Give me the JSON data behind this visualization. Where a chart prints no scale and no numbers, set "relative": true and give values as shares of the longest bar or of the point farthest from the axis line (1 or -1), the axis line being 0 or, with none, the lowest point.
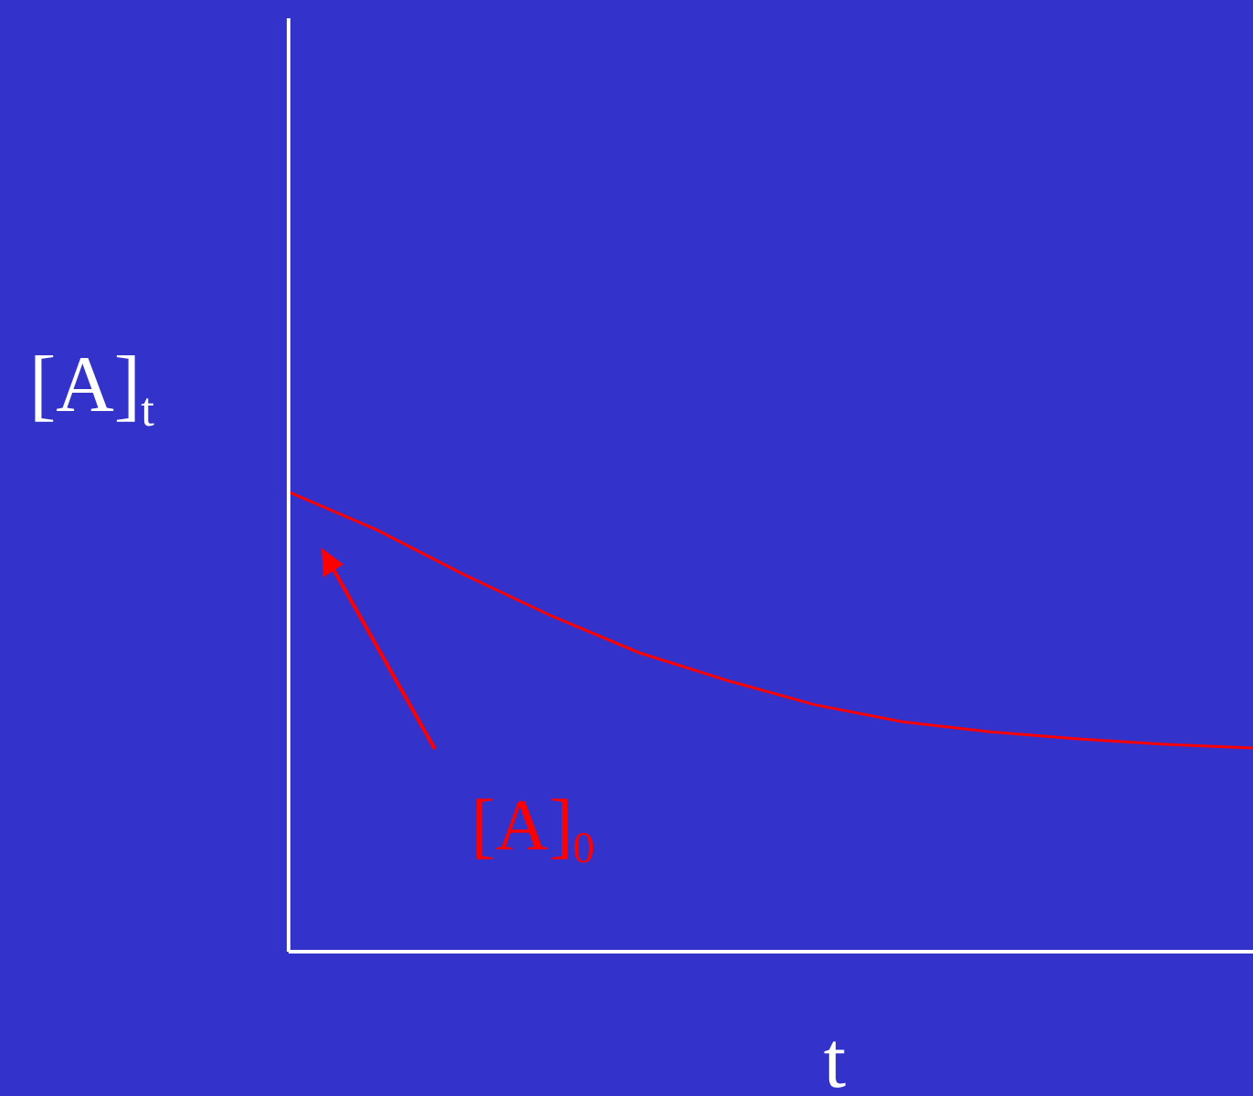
{
  "chart_data": {
    "type": "line",
    "relative": true,
    "xlabel": "t",
    "ylabel": "[A]$_{t}$",
    "annotations": [
      "[A]$_{0}$"
    ],
    "categories": [
      null,
      null,
      null,
      null,
      null,
      null,
      null,
      null,
      null,
      null,
      null,
      null
    ],
    "values": [
      1,
      0.918,
      0.82,
      0.73,
      0.65,
      0.59,
      0.537,
      0.5,
      0.478,
      0.463,
      0.451,
      0.443
    ],
    "color": "#ff0000"
  }
}
